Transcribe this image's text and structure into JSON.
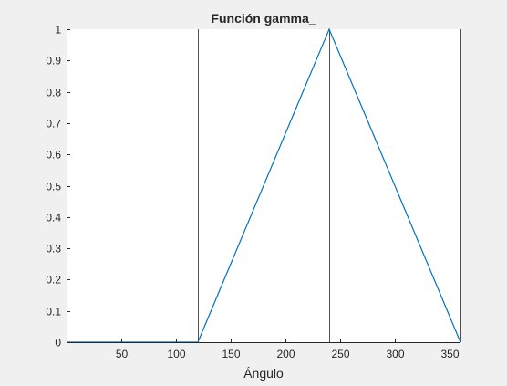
{
  "chart_data": {
    "type": "line",
    "title": "Función gamma_",
    "xlabel": "Ángulo",
    "ylabel": "",
    "xlim": [
      0,
      360
    ],
    "ylim": [
      0,
      1
    ],
    "xticks": [
      50,
      100,
      150,
      200,
      250,
      300,
      350
    ],
    "yticks": [
      0,
      0.1,
      0.2,
      0.3,
      0.4,
      0.5,
      0.6,
      0.7,
      0.8,
      0.9,
      1
    ],
    "grid": false,
    "series": [
      {
        "color": "#0072bd",
        "x": [
          0,
          120,
          240,
          360
        ],
        "y": [
          0,
          0,
          1,
          0
        ]
      }
    ],
    "vertical_lines": [
      {
        "x": 120,
        "color": "#262626"
      },
      {
        "x": 240,
        "color": "#262626"
      },
      {
        "x": 360,
        "color": "#262626"
      }
    ]
  },
  "colors": {
    "figure_background": "#f0f0f0",
    "axes_background": "#ffffff",
    "axis_color": "#262626",
    "series_color": "#0072bd"
  }
}
